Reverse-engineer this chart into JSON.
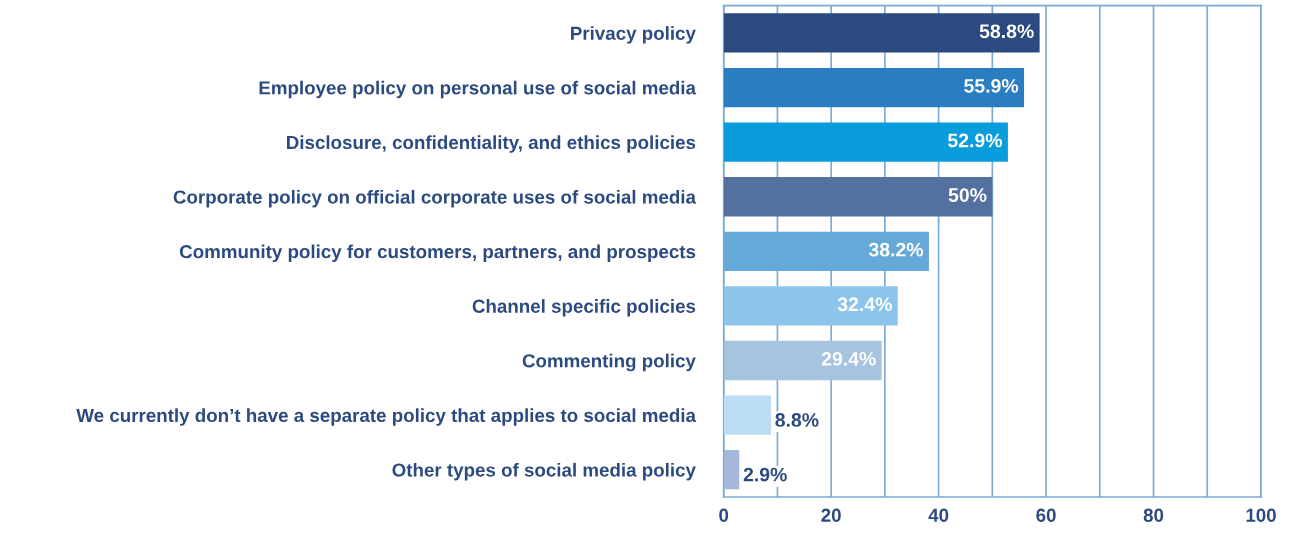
{
  "chart_data": {
    "type": "bar",
    "orientation": "horizontal",
    "categories": [
      "Privacy policy",
      "Employee policy on personal use of social media",
      "Disclosure, confidentiality, and ethics policies",
      "Corporate policy on official corporate uses of social media",
      "Community policy for customers, partners, and prospects",
      "Channel specific policies",
      "Commenting policy",
      "We currently don’t have a separate policy that applies to social media",
      "Other types of social media policy"
    ],
    "values": [
      58.8,
      55.9,
      52.9,
      50,
      38.2,
      32.4,
      29.4,
      8.8,
      2.9
    ],
    "colors": [
      "#2a4a80",
      "#2a7dc0",
      "#0a9ddb",
      "#53709e",
      "#66a9d8",
      "#8cc4ec",
      "#a6c3df",
      "#bcdcf4",
      "#a4b8dc"
    ],
    "value_labels": [
      "58.8%",
      "55.9%",
      "52.9%",
      "50%",
      "38.2%",
      "32.4%",
      "29.4%",
      "8.8%",
      "2.9%"
    ],
    "xlim": [
      0,
      100
    ],
    "xticks": [
      0,
      {
        "value": 10,
        "label": null
      },
      20,
      {
        "value": 30,
        "label": null
      },
      40,
      {
        "value": 50,
        "label": null
      },
      60,
      {
        "value": 70,
        "label": null
      },
      80,
      {
        "value": 90,
        "label": null
      },
      100
    ],
    "grid": "x",
    "legend": false
  }
}
